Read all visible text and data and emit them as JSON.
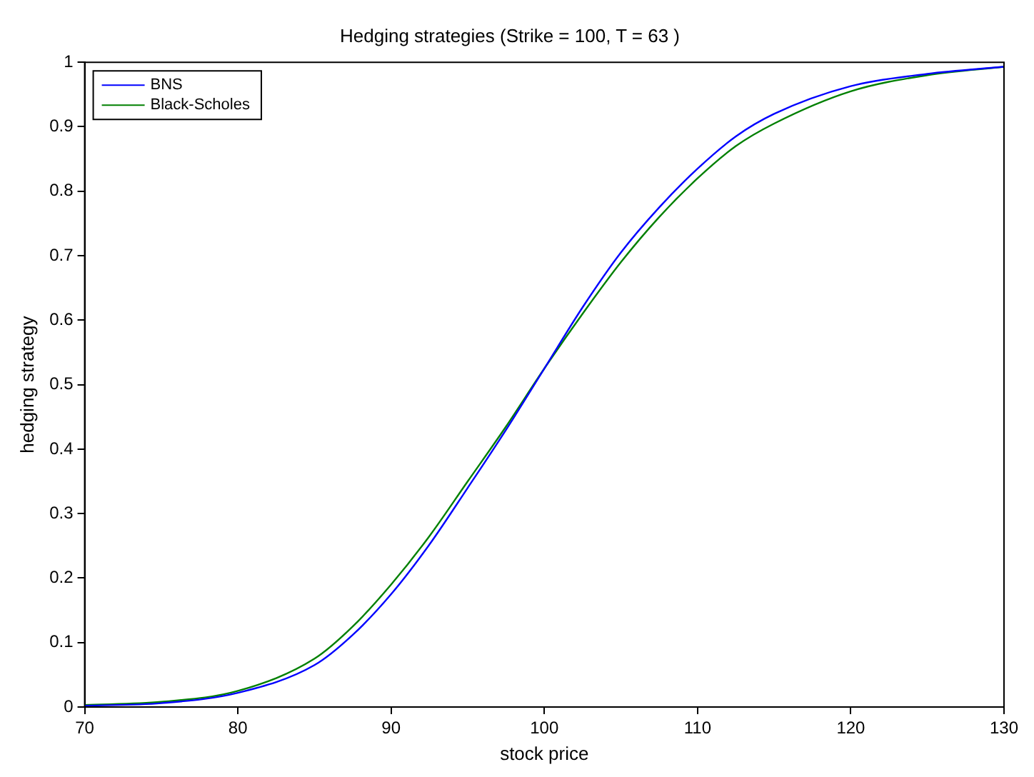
{
  "chart_data": {
    "type": "line",
    "title": "Hedging strategies (Strike = 100, T = 63 )",
    "xlabel": "stock price",
    "ylabel": "hedging strategy",
    "x": [
      70,
      75,
      80,
      85,
      87.5,
      90,
      92.5,
      95,
      97.5,
      100,
      102.5,
      105,
      107.5,
      110,
      112.5,
      115,
      120,
      125,
      130
    ],
    "series": [
      {
        "name": "BNS",
        "color": "#0000ff",
        "values": [
          0.002,
          0.006,
          0.022,
          0.065,
          0.112,
          0.175,
          0.252,
          0.34,
          0.43,
          0.525,
          0.62,
          0.705,
          0.775,
          0.835,
          0.885,
          0.92,
          0.963,
          0.982,
          0.993
        ]
      },
      {
        "name": "Black-Scholes",
        "color": "#008000",
        "values": [
          0.003,
          0.008,
          0.025,
          0.075,
          0.125,
          0.19,
          0.265,
          0.35,
          0.435,
          0.525,
          0.61,
          0.69,
          0.76,
          0.82,
          0.87,
          0.905,
          0.955,
          0.98,
          0.993
        ]
      }
    ],
    "xlim": [
      70,
      130
    ],
    "xticks": [
      70,
      80,
      90,
      100,
      110,
      120,
      130
    ],
    "ylim": [
      0,
      1
    ],
    "yticks": [
      0,
      0.1,
      0.2,
      0.3,
      0.4,
      0.5,
      0.6,
      0.7,
      0.8,
      0.9,
      1
    ],
    "grid": false,
    "legend": "top left",
    "marker": "none",
    "line_style": "solid"
  }
}
